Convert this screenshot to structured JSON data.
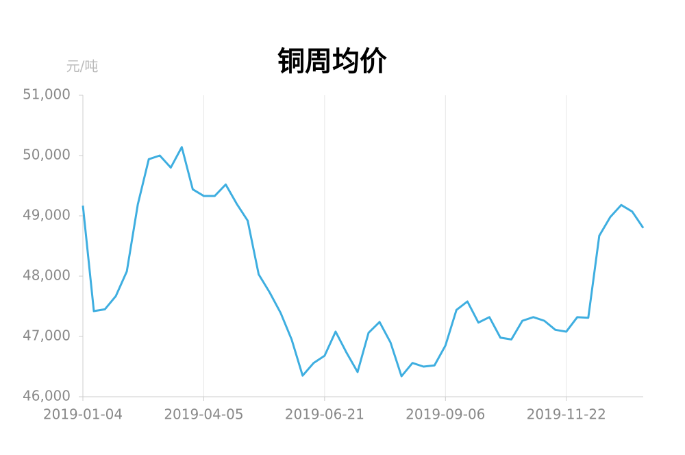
{
  "chart_data": {
    "type": "line",
    "title": "铜周均价",
    "y_unit": "元/吨",
    "categories": [
      "2019-01-04",
      null,
      null,
      null,
      null,
      null,
      null,
      null,
      null,
      null,
      null,
      "2019-04-05",
      null,
      null,
      null,
      null,
      null,
      null,
      null,
      null,
      null,
      null,
      "2019-06-21",
      null,
      null,
      null,
      null,
      null,
      null,
      null,
      null,
      null,
      null,
      "2019-09-06",
      null,
      null,
      null,
      null,
      null,
      null,
      null,
      null,
      null,
      null,
      "2019-11-22",
      null,
      null,
      null,
      null,
      null,
      null,
      null
    ],
    "series": [
      {
        "name": "铜周均价",
        "color": "#3eaee0",
        "values": [
          49170,
          47420,
          47450,
          47670,
          48080,
          49190,
          49940,
          50000,
          49800,
          50140,
          49440,
          49330,
          49330,
          49520,
          49200,
          48920,
          48030,
          47730,
          47390,
          46950,
          46350,
          46560,
          46680,
          47080,
          46730,
          46410,
          47060,
          47240,
          46900,
          46340,
          46560,
          46500,
          46520,
          46850,
          47440,
          47580,
          47230,
          47320,
          46980,
          46950,
          47260,
          47320,
          47260,
          47110,
          47080,
          47320,
          47310,
          48670,
          48980,
          49180,
          49070,
          48800
        ]
      }
    ],
    "ylim": [
      46000,
      51000
    ],
    "yticks": [
      {
        "value": 46000,
        "label": "46,000"
      },
      {
        "value": 47000,
        "label": "47,000"
      },
      {
        "value": 48000,
        "label": "48,000"
      },
      {
        "value": 49000,
        "label": "49,000"
      },
      {
        "value": 50000,
        "label": "50,000"
      },
      {
        "value": 51000,
        "label": "51,000"
      }
    ],
    "grid": true
  }
}
